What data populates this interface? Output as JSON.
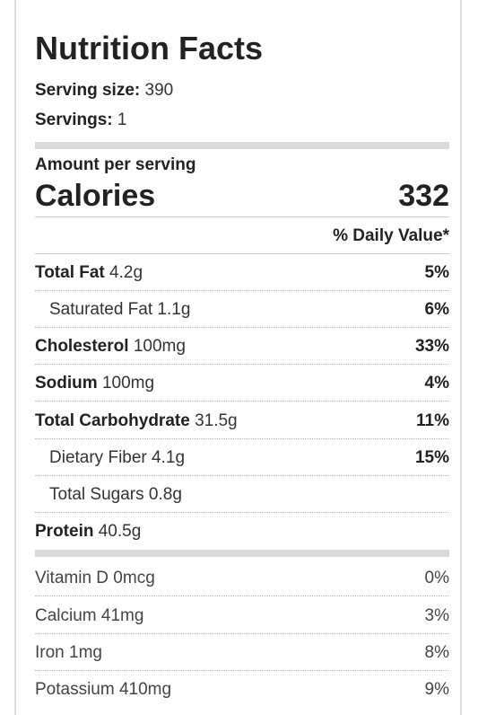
{
  "title": "Nutrition Facts",
  "serving_size": {
    "label": "Serving size:",
    "value": "390"
  },
  "servings": {
    "label": "Servings:",
    "value": "1"
  },
  "amount_per_serving": "Amount per serving",
  "calories": {
    "label": "Calories",
    "value": "332"
  },
  "daily_value_header": "% Daily Value*",
  "nutrients": [
    {
      "name": "Total Fat",
      "amount": "4.2g",
      "dv": "5%"
    },
    {
      "name": "Saturated Fat",
      "amount": "1.1g",
      "dv": "6%"
    },
    {
      "name": "Cholesterol",
      "amount": "100mg",
      "dv": "33%"
    },
    {
      "name": "Sodium",
      "amount": "100mg",
      "dv": "4%"
    },
    {
      "name": "Total Carbohydrate",
      "amount": "31.5g",
      "dv": "11%"
    },
    {
      "name": "Dietary Fiber",
      "amount": "4.1g",
      "dv": "15%"
    },
    {
      "name": "Total Sugars",
      "amount": "0.8g",
      "dv": ""
    },
    {
      "name": "Protein",
      "amount": "40.5g",
      "dv": ""
    }
  ],
  "vitamins": [
    {
      "name": "Vitamin D",
      "amount": "0mcg",
      "dv": "0%"
    },
    {
      "name": "Calcium",
      "amount": "41mg",
      "dv": "3%"
    },
    {
      "name": "Iron",
      "amount": "1mg",
      "dv": "8%"
    },
    {
      "name": "Potassium",
      "amount": "410mg",
      "dv": "9%"
    }
  ],
  "colors": {
    "divider_bar": "#d9d9d9",
    "text": "#222222",
    "panel_border": "#dddddd"
  }
}
